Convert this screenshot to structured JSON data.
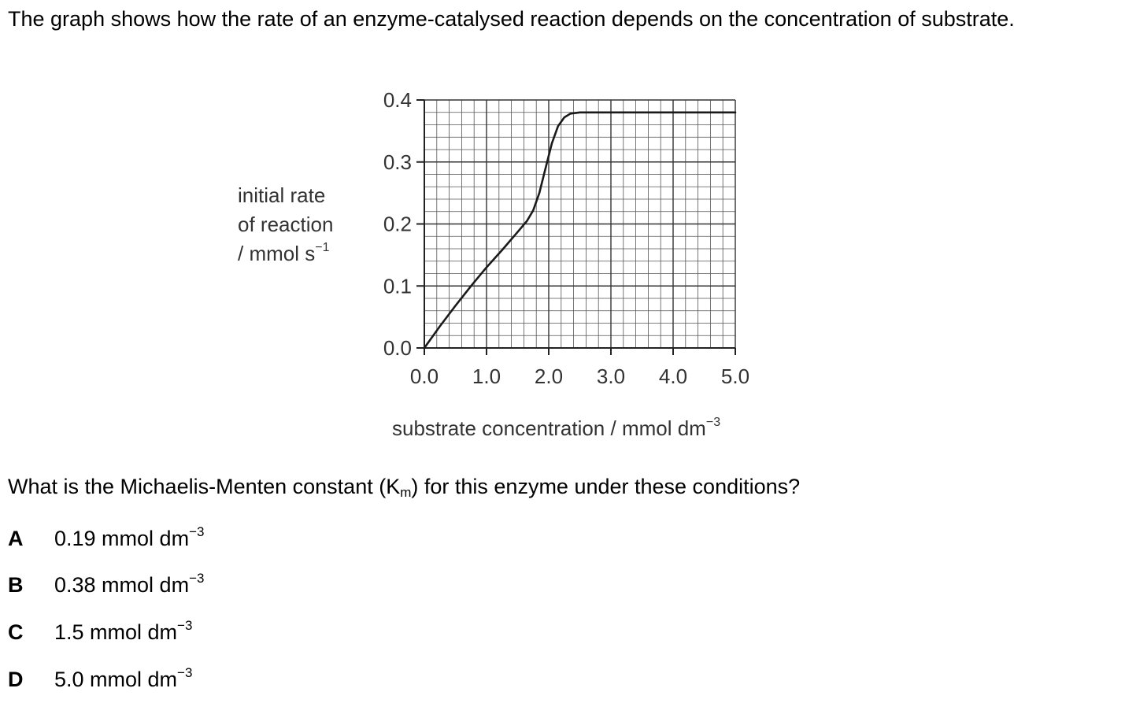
{
  "intro": "The graph shows how the rate of an enzyme-catalysed reaction depends on the concentration of substrate.",
  "chart_data": {
    "type": "line",
    "title": "",
    "ylabel_lines": [
      "initial rate",
      "of reaction",
      "/ mmol s"
    ],
    "ylabel_sup": "−1",
    "xlabel": "substrate concentration / mmol dm",
    "xlabel_sup": "−3",
    "xlim": [
      0,
      5
    ],
    "ylim": [
      0,
      0.4
    ],
    "xticks": [
      "0.0",
      "1.0",
      "2.0",
      "3.0",
      "4.0",
      "5.0"
    ],
    "yticks": [
      "0.0",
      "0.1",
      "0.2",
      "0.3",
      "0.4"
    ],
    "grid": true,
    "series": [
      {
        "x": [
          0,
          0.25,
          0.5,
          0.75,
          1.0,
          1.25,
          1.5,
          1.65,
          1.75,
          1.85,
          1.95,
          2.05,
          2.15,
          2.25,
          2.35,
          2.5,
          3.0,
          4.0,
          5.0
        ],
        "y": [
          0,
          0.035,
          0.068,
          0.1,
          0.13,
          0.158,
          0.187,
          0.205,
          0.222,
          0.25,
          0.29,
          0.33,
          0.358,
          0.372,
          0.378,
          0.38,
          0.38,
          0.38,
          0.38
        ]
      }
    ]
  },
  "question": {
    "before": "What is the Michaelis-Menten constant (K",
    "sub": "m",
    "after": ") for this enzyme under these conditions?"
  },
  "options": [
    {
      "letter": "A",
      "text": "0.19 mmol dm",
      "sup": "−3"
    },
    {
      "letter": "B",
      "text": "0.38 mmol dm",
      "sup": "−3"
    },
    {
      "letter": "C",
      "text": "1.5 mmol dm",
      "sup": "−3"
    },
    {
      "letter": "D",
      "text": "5.0 mmol dm",
      "sup": "−3"
    }
  ]
}
